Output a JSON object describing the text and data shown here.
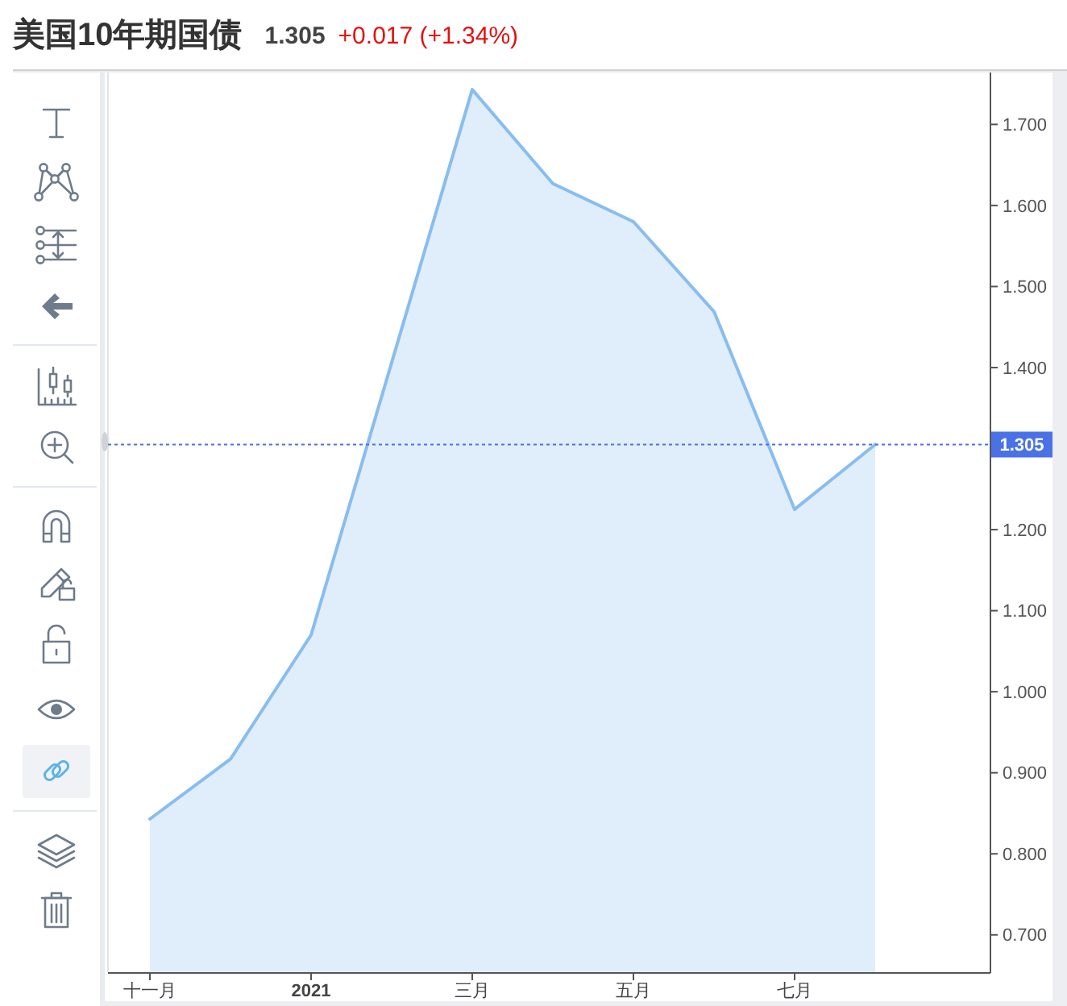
{
  "chart_data": {
    "type": "area",
    "title": "美国10年期国债",
    "subtitle": "1.305",
    "annotations": [
      "+0.017 (+1.34%)"
    ],
    "categories": [
      "十一月",
      null,
      "2021",
      null,
      "三月",
      null,
      "五月",
      null,
      "七月",
      null
    ],
    "values": [
      0.843,
      0.917,
      1.07,
      1.406,
      1.743,
      1.627,
      1.58,
      1.469,
      1.225,
      1.305
    ],
    "color": "#88bdf0",
    "ylim": [
      0.654,
      1.766
    ],
    "yticks": [
      {
        "value": 0.7,
        "label": "0.700"
      },
      {
        "value": 0.8,
        "label": "0.800"
      },
      {
        "value": 0.9,
        "label": "0.900"
      },
      {
        "value": 1.0,
        "label": "1.000"
      },
      {
        "value": 1.1,
        "label": "1.100"
      },
      {
        "value": 1.2,
        "label": "1.200"
      },
      {
        "value": 1.4,
        "label": "1.400"
      },
      {
        "value": 1.5,
        "label": "1.500"
      },
      {
        "value": 1.6,
        "label": "1.600"
      },
      {
        "value": 1.7,
        "label": "1.700"
      }
    ],
    "ref_lines": [
      {
        "axis": "y",
        "value": 1.305,
        "label": "1.305",
        "color": "#4a72e6",
        "line_style": "dotted"
      }
    ]
  }
}
